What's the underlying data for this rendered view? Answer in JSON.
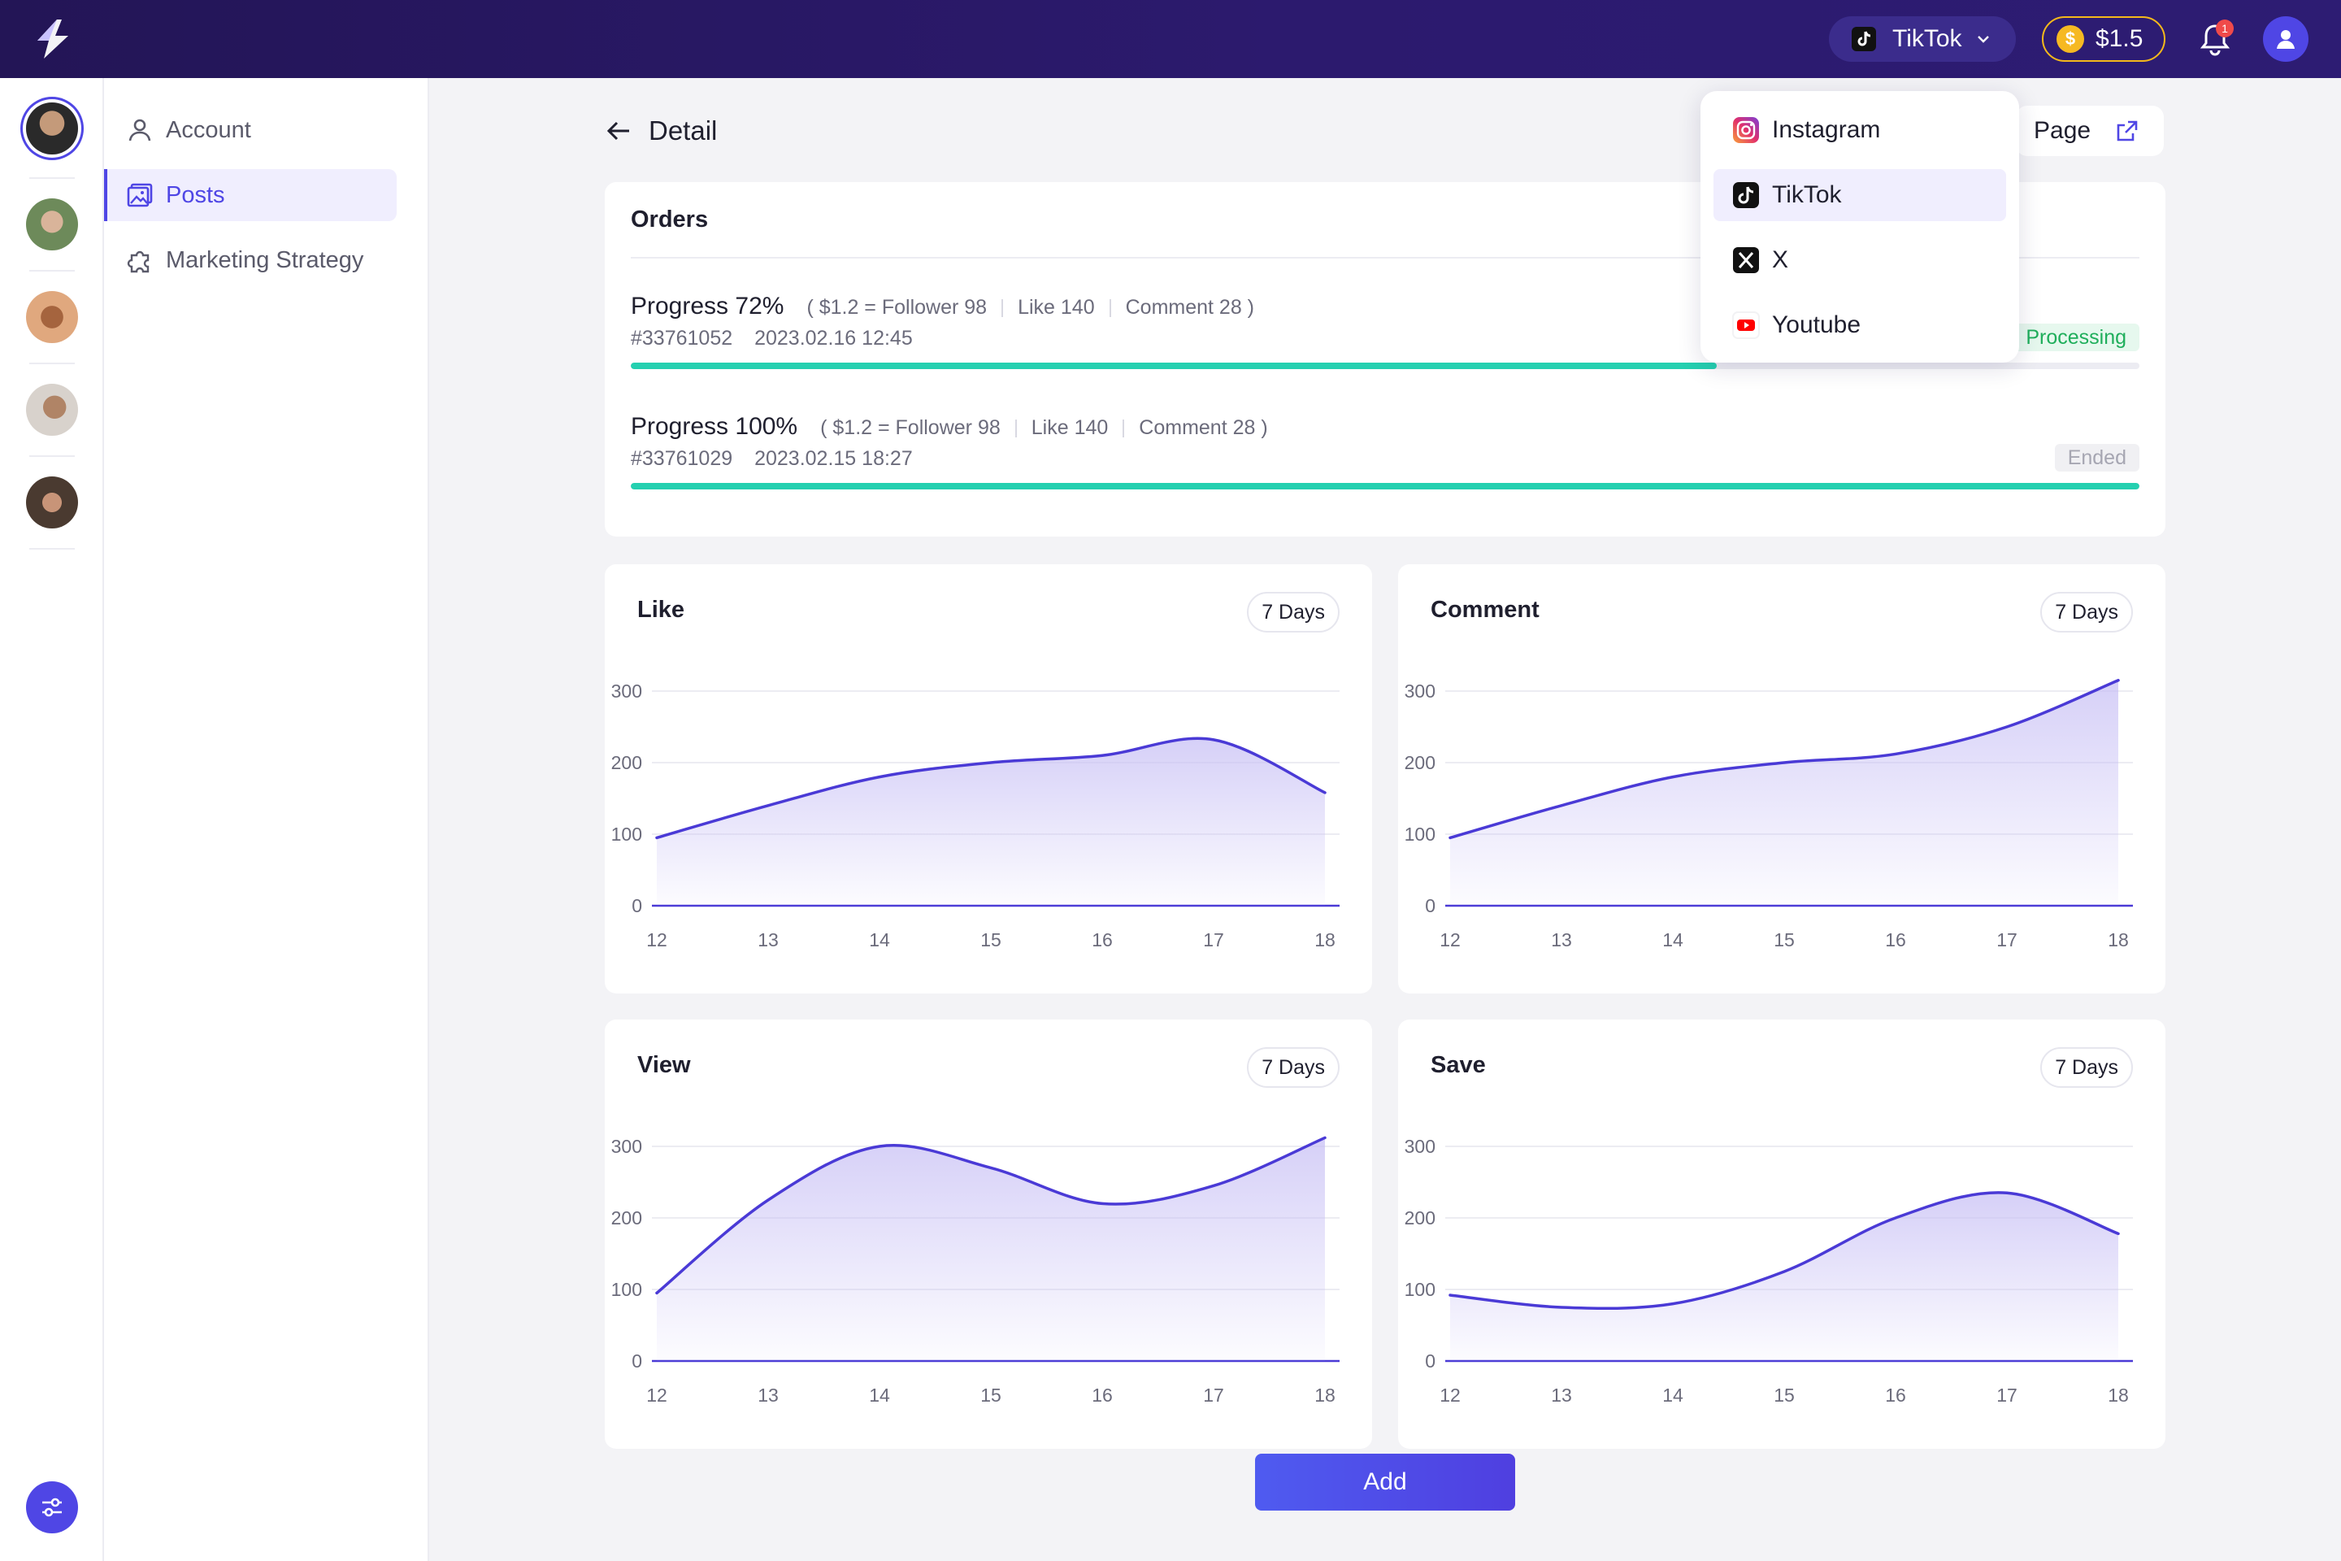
{
  "topbar": {
    "platform_label": "TikTok",
    "balance": "$1.5",
    "coin_symbol": "$",
    "notification_count": "1"
  },
  "sidebar": {
    "items": [
      {
        "label": "Account",
        "icon": "user-icon"
      },
      {
        "label": "Posts",
        "icon": "image-icon",
        "active": true
      },
      {
        "label": "Marketing Strategy",
        "icon": "puzzle-icon"
      }
    ]
  },
  "header": {
    "back_title": "Detail",
    "page_button": "Page"
  },
  "orders": {
    "title": "Orders",
    "items": [
      {
        "progress_label": "Progress 72%",
        "progress": 72,
        "price": "( $1.2 = Follower 98",
        "like": "Like 140",
        "comment": "Comment 28 )",
        "id": "#33761052",
        "date": "2023.02.16 12:45",
        "status": "Processing"
      },
      {
        "progress_label": "Progress 100%",
        "progress": 100,
        "price": "( $1.2 = Follower 98",
        "like": "Like 140",
        "comment": "Comment 28 )",
        "id": "#33761029",
        "date": "2023.02.15 18:27",
        "status": "Ended"
      }
    ]
  },
  "dropdown": {
    "options": [
      {
        "label": "Instagram",
        "icon": "instagram-icon"
      },
      {
        "label": "TikTok",
        "icon": "tiktok-icon",
        "selected": true
      },
      {
        "label": "X",
        "icon": "x-icon"
      },
      {
        "label": "Youtube",
        "icon": "youtube-icon"
      }
    ]
  },
  "range_label": "7 Days",
  "add_button": "Add",
  "colors": {
    "accent": "#4f46e5",
    "line": "#4a3ad6",
    "progress": "#24d0b0",
    "processing": "#1fae5b"
  },
  "chart_data": [
    {
      "type": "area",
      "title": "Like",
      "x": [
        12,
        13,
        14,
        15,
        16,
        17,
        18
      ],
      "y_ticks": [
        0,
        100,
        200,
        300
      ],
      "ylim": [
        0,
        300
      ],
      "values": [
        95,
        140,
        180,
        200,
        210,
        232,
        158
      ]
    },
    {
      "type": "area",
      "title": "Comment",
      "x": [
        12,
        13,
        14,
        15,
        16,
        17,
        18
      ],
      "y_ticks": [
        0,
        100,
        200,
        300
      ],
      "ylim": [
        0,
        300
      ],
      "values": [
        95,
        140,
        180,
        200,
        212,
        250,
        315
      ]
    },
    {
      "type": "area",
      "title": "View",
      "x": [
        12,
        13,
        14,
        15,
        16,
        17,
        18
      ],
      "y_ticks": [
        0,
        100,
        200,
        300
      ],
      "ylim": [
        0,
        300
      ],
      "values": [
        95,
        225,
        300,
        270,
        220,
        245,
        312
      ]
    },
    {
      "type": "area",
      "title": "Save",
      "x": [
        12,
        13,
        14,
        15,
        16,
        17,
        18
      ],
      "y_ticks": [
        0,
        100,
        200,
        300
      ],
      "ylim": [
        0,
        300
      ],
      "values": [
        92,
        75,
        80,
        125,
        200,
        235,
        178
      ]
    }
  ]
}
